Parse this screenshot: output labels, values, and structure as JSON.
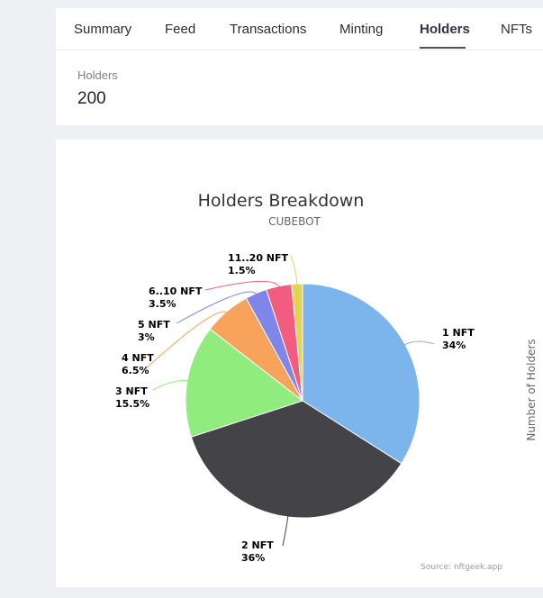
{
  "tabs": [
    {
      "label": "Summary"
    },
    {
      "label": "Feed"
    },
    {
      "label": "Transactions"
    },
    {
      "label": "Minting"
    },
    {
      "label": "Holders",
      "active": true
    },
    {
      "label": "NFTs"
    }
  ],
  "holders_stat": {
    "label": "Holders",
    "value": "200"
  },
  "chart_data": {
    "type": "pie",
    "title": "Holders Breakdown",
    "subtitle": "CUBEBOT",
    "ylabel": "Number of Holders",
    "source": "Source: nftgeek.app",
    "slices": [
      {
        "label": "1 NFT",
        "pct_label": "34%",
        "value": 34,
        "color": "#7cb5ec"
      },
      {
        "label": "2 NFT",
        "pct_label": "36%",
        "value": 36,
        "color": "#434348"
      },
      {
        "label": "3 NFT",
        "pct_label": "15.5%",
        "value": 15.5,
        "color": "#90ed7d"
      },
      {
        "label": "4 NFT",
        "pct_label": "6.5%",
        "value": 6.5,
        "color": "#f7a35c"
      },
      {
        "label": "5 NFT",
        "pct_label": "3%",
        "value": 3,
        "color": "#8085e9"
      },
      {
        "label": "6..10 NFT",
        "pct_label": "3.5%",
        "value": 3.5,
        "color": "#f15c80"
      },
      {
        "label": "11..20 NFT",
        "pct_label": "1.5%",
        "value": 1.5,
        "color": "#e4d354"
      }
    ]
  }
}
